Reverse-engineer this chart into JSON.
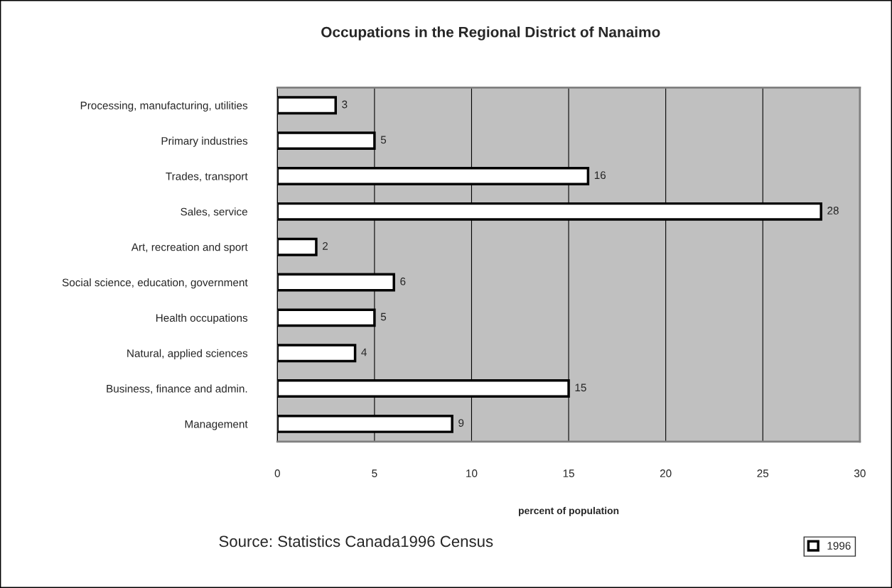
{
  "chart_data": {
    "type": "bar",
    "orientation": "horizontal",
    "title": "Occupations in the Regional District of Nanaimo",
    "categories": [
      "Processing, manufacturing, utilities",
      "Primary industries",
      "Trades, transport",
      "Sales, service",
      "Art, recreation and sport",
      "Social science, education, government",
      "Health occupations",
      "Natural, applied sciences",
      "Business, finance and admin.",
      "Management"
    ],
    "series": [
      {
        "name": "1996",
        "color": "#ffffff",
        "values": [
          3,
          5,
          16,
          28,
          2,
          6,
          5,
          4,
          15,
          9
        ]
      }
    ],
    "xlabel": "percent of population",
    "xlim": [
      0,
      30
    ],
    "xticks": [
      0,
      5,
      10,
      15,
      20,
      25,
      30
    ],
    "grid": "x",
    "legend": "bottom right",
    "data_labels": true,
    "annotations": [
      "Source: Statistics Canada1996 Census"
    ]
  }
}
